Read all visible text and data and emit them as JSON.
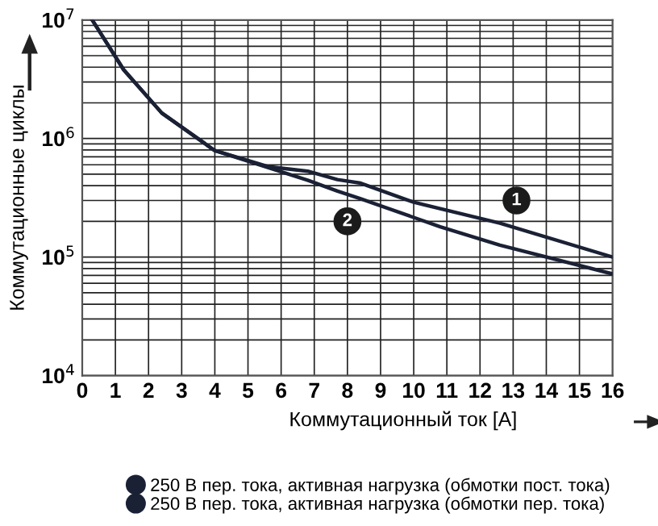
{
  "chart_data": {
    "type": "line",
    "xlabel": "Коммутационный ток [A]",
    "ylabel": "Коммутационные циклы",
    "series": [
      {
        "name": "250 В пер. тока, активная нагрузка (обмотки пост. тока)",
        "color": "#1b2135",
        "x": [
          0.3,
          1.25,
          2.4,
          4.0,
          5.6,
          6.8,
          7.7,
          8.4,
          10.0,
          12.6,
          16
        ],
        "values": [
          10000000,
          3800000,
          1640000,
          790000,
          580000,
          530000,
          450000,
          420000,
          290000,
          193000,
          100000
        ]
      },
      {
        "name": "250 В пер. тока, активная нагрузка (обмотки пер. тока)",
        "color": "#1b2135",
        "x": [
          0.3,
          1.25,
          2.4,
          4.0,
          5.6,
          6.8,
          7.7,
          8.4,
          10.8,
          12.6,
          16
        ],
        "values": [
          10000000,
          3800000,
          1640000,
          790000,
          570000,
          445000,
          360000,
          310000,
          180000,
          126000,
          72000
        ]
      }
    ],
    "annotations": [
      {
        "text": "1",
        "x": 13.1,
        "y": 300000
      },
      {
        "text": "2",
        "x": 8.0,
        "y": 200000
      }
    ],
    "log": "y",
    "xlim": [
      0,
      16
    ],
    "xticks": [
      0,
      1,
      2,
      3,
      4,
      5,
      6,
      7,
      8,
      9,
      10,
      11,
      12,
      13,
      14,
      15,
      16
    ],
    "ylim": [
      10000,
      10000000
    ],
    "yticks": [
      {
        "value": 10000,
        "label": "10$^{4}$"
      },
      {
        "value": 100000,
        "label": "10$^{5}$"
      },
      {
        "value": 1000000,
        "label": "10$^{6}$"
      },
      {
        "value": 10000000,
        "label": "10$^{7}$"
      }
    ],
    "grid": true,
    "legend": "bottom",
    "marker": "none",
    "line_style": "solid"
  }
}
